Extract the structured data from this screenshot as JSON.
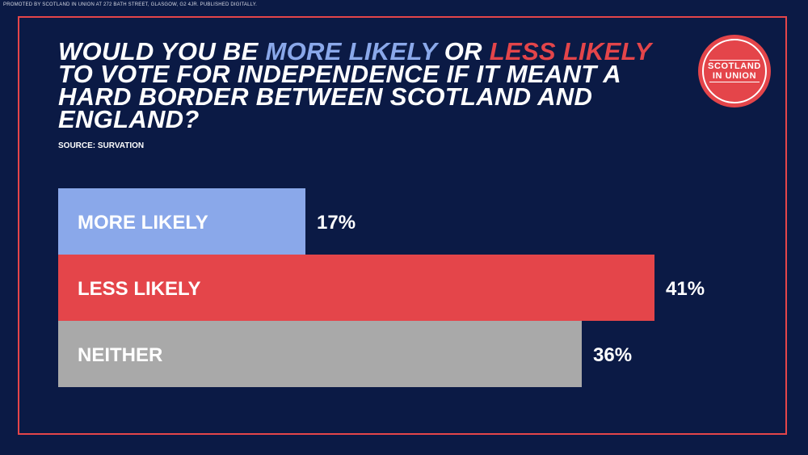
{
  "imprint": "PROMOTED BY SCOTLAND IN UNION AT 272 BATH STREET, GLASGOW, G2 4JR. PUBLISHED DIGITALLY.",
  "title": {
    "part1": "Would you be ",
    "highlight1": "more likely",
    "part2": " or ",
    "highlight2": "less likely",
    "part3": " to vote for independence if it meant a hard border between Scotland and England?"
  },
  "source": "SOURCE: SURVATION",
  "logo": {
    "line1": "SCOTLAND",
    "line2": "IN UNION"
  },
  "colors": {
    "background": "#0b1a45",
    "frame": "#e4454a",
    "more": "#8aa8ea",
    "less": "#e4454a",
    "neither": "#a9a9a9"
  },
  "chart_data": {
    "type": "bar",
    "orientation": "horizontal",
    "categories": [
      "MORE LIKELY",
      "LESS LIKELY",
      "NEITHER"
    ],
    "values": [
      17,
      41,
      36
    ],
    "value_labels": [
      "17%",
      "41%",
      "36%"
    ],
    "colors": [
      "#8aa8ea",
      "#e4454a",
      "#a9a9a9"
    ],
    "unit": "%",
    "xlim": [
      0,
      41
    ],
    "grid": false,
    "legend": "none"
  }
}
